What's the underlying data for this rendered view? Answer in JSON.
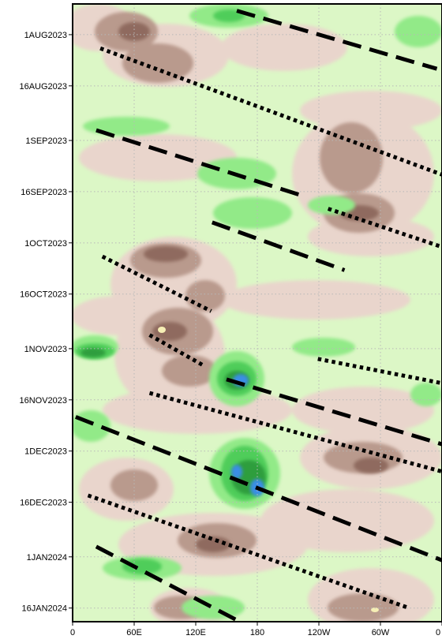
{
  "chart_data": {
    "type": "heatmap",
    "subtype": "hovmoller",
    "title": "",
    "xlabel": "",
    "ylabel": "",
    "x_ticks": [
      {
        "lon": 0,
        "label": "0"
      },
      {
        "lon": 60,
        "label": "60E"
      },
      {
        "lon": 120,
        "label": "120E"
      },
      {
        "lon": 180,
        "label": "180"
      },
      {
        "lon": 240,
        "label": "120W"
      },
      {
        "lon": 300,
        "label": "60W"
      },
      {
        "lon": 360,
        "label": "0"
      }
    ],
    "y_ticks": [
      {
        "day": 0,
        "label": "1AUG2023"
      },
      {
        "day": 15,
        "label": "16AUG2023"
      },
      {
        "day": 31,
        "label": "1SEP2023"
      },
      {
        "day": 46,
        "label": "16SEP2023"
      },
      {
        "day": 61,
        "label": "1OCT2023"
      },
      {
        "day": 76,
        "label": "16OCT2023"
      },
      {
        "day": 92,
        "label": "1NOV2023"
      },
      {
        "day": 107,
        "label": "16NOV2023"
      },
      {
        "day": 122,
        "label": "1DEC2023"
      },
      {
        "day": 137,
        "label": "16DEC2023"
      },
      {
        "day": 153,
        "label": "1JAN2024"
      },
      {
        "day": 168,
        "label": "16JAN2024"
      }
    ],
    "xlim": [
      0,
      360
    ],
    "ylim": [
      -9,
      172
    ],
    "y_direction": "time increasing downward",
    "grid": true,
    "colors": {
      "dark_brown": "#8f6b5e",
      "brown": "#b99a8d",
      "light_brown": "#e9d5cc",
      "pale_green": "#dcf7c6",
      "light_green": "#92ea88",
      "green": "#4fcd5a",
      "dark_green": "#2f9e3c",
      "blue": "#3b8ee6",
      "yellow": "#f6efb5"
    },
    "features": [
      {
        "kind": "dashed",
        "lon": [
          160,
          355
        ],
        "day": [
          -7,
          10
        ]
      },
      {
        "kind": "dotted",
        "lon": [
          27,
          360
        ],
        "day": [
          4,
          41
        ]
      },
      {
        "kind": "dashed",
        "lon": [
          23,
          222
        ],
        "day": [
          28,
          47
        ]
      },
      {
        "kind": "dotted",
        "lon": [
          249,
          358
        ],
        "day": [
          51,
          62
        ]
      },
      {
        "kind": "dashed",
        "lon": [
          136,
          265
        ],
        "day": [
          55,
          69
        ]
      },
      {
        "kind": "dotted",
        "lon": [
          29,
          135
        ],
        "day": [
          65,
          81
        ]
      },
      {
        "kind": "dotted",
        "lon": [
          75,
          128
        ],
        "day": [
          88,
          97
        ]
      },
      {
        "kind": "dotted",
        "lon": [
          239,
          358
        ],
        "day": [
          95,
          102
        ]
      },
      {
        "kind": "dashed",
        "lon": [
          150,
          360
        ],
        "day": [
          101,
          120
        ]
      },
      {
        "kind": "dotted",
        "lon": [
          75,
          360
        ],
        "day": [
          105,
          128
        ]
      },
      {
        "kind": "dashed",
        "lon": [
          3,
          360
        ],
        "day": [
          112,
          154
        ]
      },
      {
        "kind": "dotted",
        "lon": [
          15,
          328
        ],
        "day": [
          135,
          168
        ]
      },
      {
        "kind": "dashed",
        "lon": [
          23,
          163
        ],
        "day": [
          150,
          172
        ]
      }
    ]
  }
}
